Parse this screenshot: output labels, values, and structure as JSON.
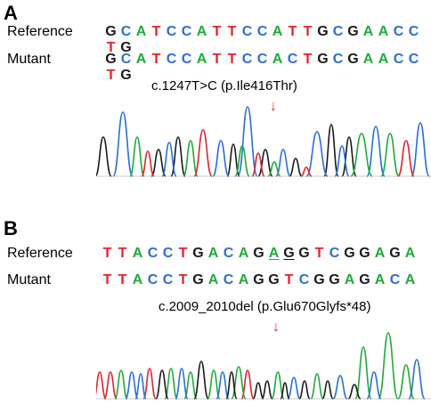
{
  "colors": {
    "G": "#1a1a1a",
    "C": "#2a6fd6",
    "A": "#1faa3a",
    "T": "#e0242a",
    "arrow": "#e03030"
  },
  "panelA": {
    "label": "A",
    "reference_label": "Reference",
    "mutant_label": "Mutant",
    "reference_seq": [
      "G",
      "C",
      "A",
      "T",
      "C",
      "C",
      "A",
      "T",
      "T",
      "C",
      "C",
      "A",
      "T",
      "T",
      "G",
      "C",
      "G",
      "A",
      "A",
      "C",
      "C",
      "T",
      "G"
    ],
    "mutant_seq": [
      "G",
      "C",
      "A",
      "T",
      "C",
      "C",
      "A",
      "T",
      "T",
      "C",
      "C",
      "A",
      "C",
      "T",
      "G",
      "C",
      "G",
      "A",
      "A",
      "C",
      "C",
      "T",
      "G"
    ],
    "mutation": "c.1247T>C (p.Ile416Thr)",
    "arrow": "↓"
  },
  "panelB": {
    "label": "B",
    "reference_label": "Reference",
    "mutant_label": "Mutant",
    "reference_seq": [
      "T",
      "T",
      "A",
      "C",
      "C",
      "T",
      "G",
      "A",
      "C",
      "A",
      "G",
      "A",
      "G",
      "G",
      "T",
      "C",
      "G",
      "G",
      "A",
      "G",
      "A"
    ],
    "underlined_positions": [
      11,
      12
    ],
    "mutant_seq": [
      "T",
      "T",
      "A",
      "C",
      "C",
      "T",
      "G",
      "A",
      "C",
      "A",
      "G",
      "G",
      "T",
      "C",
      "G",
      "G",
      "A",
      "G",
      "A",
      "C",
      "A"
    ],
    "mutation": "c.2009_2010del (p.Glu670Glyfs*48)",
    "arrow": "↓"
  }
}
